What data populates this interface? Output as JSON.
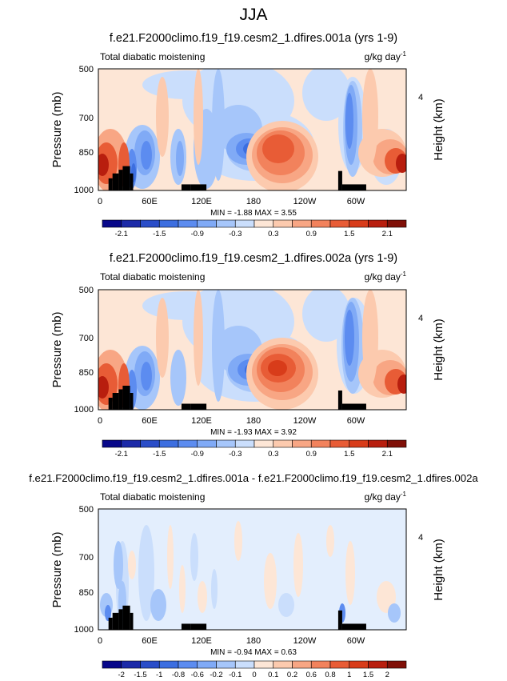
{
  "figure": {
    "title": "JJA"
  },
  "chart_data": [
    {
      "type": "heatmap",
      "title": "f.e21.F2000climo.f19_f19.cesm2_1.dfires.001a (yrs 1-9)",
      "left_label": "Total diabatic moistening",
      "units": "g/kg day",
      "units_exp": "-1",
      "ylabel": "Pressure (mb)",
      "ylabel_right": "Height (km)",
      "right_ticks": [
        "4"
      ],
      "x_ticks": [
        "0",
        "60E",
        "120E",
        "180",
        "120W",
        "60W"
      ],
      "y_ticks": [
        "500",
        "700",
        "850",
        "1000"
      ],
      "stats_text": "MIN = -1.88 MAX = 3.55",
      "min": -1.88,
      "max": 3.55,
      "colorbar_labels": [
        "-2.1",
        "-1.5",
        "-0.9",
        "-0.3",
        "0.3",
        "0.9",
        "1.5",
        "2.1"
      ],
      "levels": [
        -2.4,
        -2.1,
        -1.8,
        -1.5,
        -1.2,
        -0.9,
        -0.6,
        -0.3,
        0,
        0.3,
        0.6,
        0.9,
        1.2,
        1.5,
        1.8,
        2.1,
        2.4
      ]
    },
    {
      "type": "heatmap",
      "title": "f.e21.F2000climo.f19_f19.cesm2_1.dfires.002a (yrs 1-9)",
      "left_label": "Total diabatic moistening",
      "units": "g/kg day",
      "units_exp": "-1",
      "ylabel": "Pressure (mb)",
      "ylabel_right": "Height (km)",
      "right_ticks": [
        "4"
      ],
      "x_ticks": [
        "0",
        "60E",
        "120E",
        "180",
        "120W",
        "60W"
      ],
      "y_ticks": [
        "500",
        "700",
        "850",
        "1000"
      ],
      "stats_text": "MIN = -1.93 MAX = 3.92",
      "min": -1.93,
      "max": 3.92,
      "colorbar_labels": [
        "-2.1",
        "-1.5",
        "-0.9",
        "-0.3",
        "0.3",
        "0.9",
        "1.5",
        "2.1"
      ],
      "levels": [
        -2.4,
        -2.1,
        -1.8,
        -1.5,
        -1.2,
        -0.9,
        -0.6,
        -0.3,
        0,
        0.3,
        0.6,
        0.9,
        1.2,
        1.5,
        1.8,
        2.1,
        2.4
      ]
    },
    {
      "type": "heatmap",
      "title": "f.e21.F2000climo.f19_f19.cesm2_1.dfires.001a - f.e21.F2000climo.f19_f19.cesm2_1.dfires.002a",
      "left_label": "Total diabatic moistening",
      "units": "g/kg day",
      "units_exp": "-1",
      "ylabel": "Pressure (mb)",
      "ylabel_right": "Height (km)",
      "right_ticks": [
        "4"
      ],
      "x_ticks": [
        "0",
        "60E",
        "120E",
        "180",
        "120W",
        "60W"
      ],
      "y_ticks": [
        "500",
        "700",
        "850",
        "1000"
      ],
      "stats_text": "MIN = -0.94 MAX = 0.63",
      "min": -0.94,
      "max": 0.63,
      "colorbar_labels": [
        "-2",
        "-1.5",
        "-1",
        "-0.8",
        "-0.6",
        "-0.2",
        "-0.1",
        "0",
        "0.1",
        "0.2",
        "0.6",
        "0.8",
        "1",
        "1.5",
        "2"
      ],
      "levels": [
        -2.5,
        -2,
        -1.5,
        -1,
        -0.8,
        -0.6,
        -0.2,
        -0.1,
        0,
        0.1,
        0.2,
        0.6,
        0.8,
        1,
        1.5,
        2,
        2.5
      ]
    }
  ],
  "palette": [
    "#08088a",
    "#1c2aa8",
    "#2a4dc8",
    "#3c6ee0",
    "#5c8cf0",
    "#80aaf6",
    "#a6c6fa",
    "#cadefc",
    "#fde6d6",
    "#fccaae",
    "#f8a684",
    "#f2825c",
    "#e85c36",
    "#d83c1a",
    "#b81e0e",
    "#801008"
  ]
}
